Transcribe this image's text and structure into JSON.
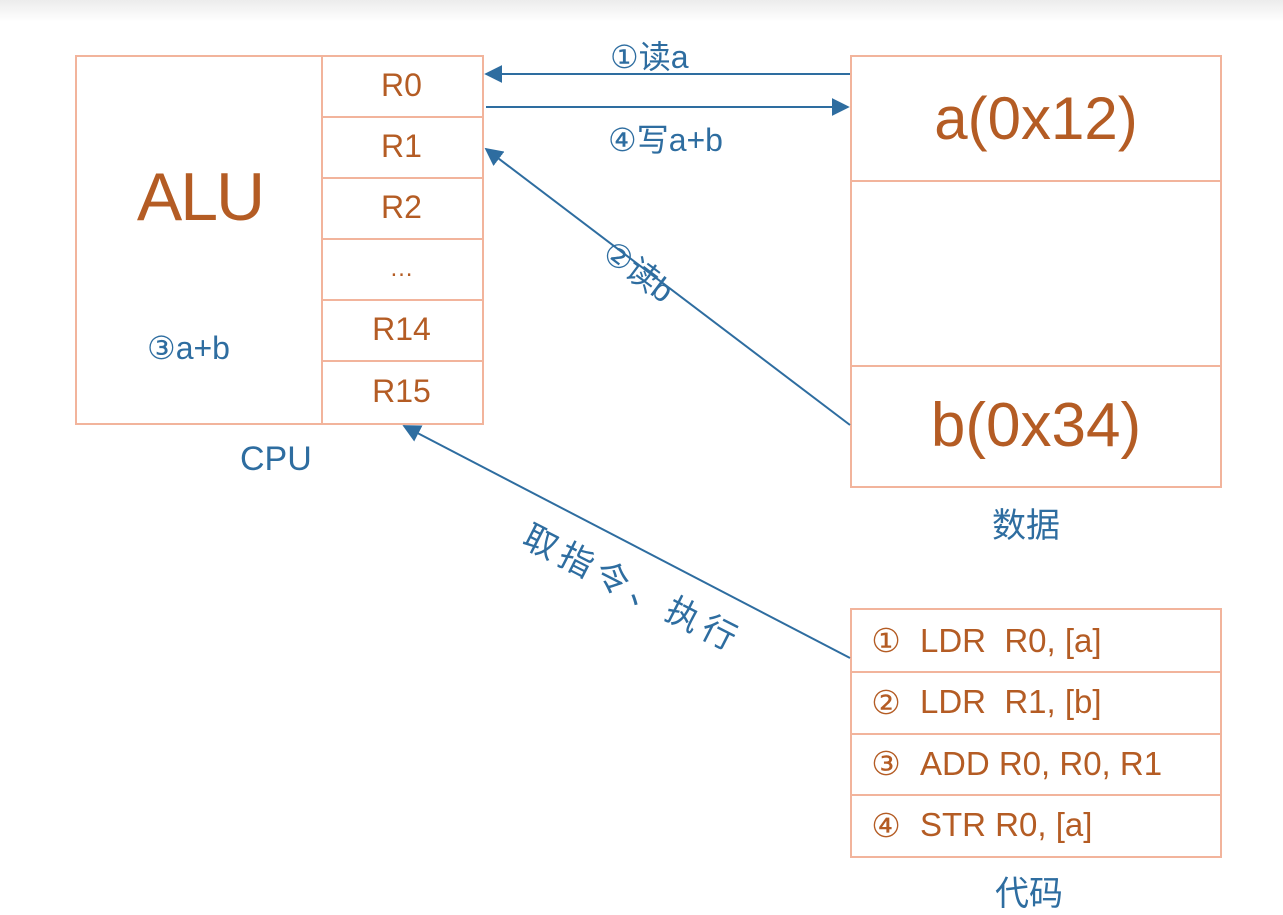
{
  "cpu": {
    "label": "CPU",
    "alu_label": "ALU",
    "alu_step": "③a+b",
    "registers": [
      "R0",
      "R1",
      "R2",
      "…",
      "R14",
      "R15"
    ]
  },
  "data_memory": {
    "label": "数据",
    "cells": [
      "a(0x12)",
      "",
      "b(0x34)"
    ]
  },
  "code_memory": {
    "label": "代码",
    "instructions": [
      {
        "num": "①",
        "text": "LDR  R0, [a]"
      },
      {
        "num": "②",
        "text": "LDR  R1, [b]"
      },
      {
        "num": "③",
        "text": "ADD R0, R0, R1"
      },
      {
        "num": "④",
        "text": "STR R0, [a]"
      }
    ]
  },
  "arrows": {
    "read_a": "①读a",
    "write_ab": "④写a+b",
    "read_b": "②读b",
    "fetch_exec": "取指令、执行"
  },
  "colors": {
    "border": "#f2b49c",
    "brown_text": "#b45c24",
    "blue_text": "#2e6da0",
    "arrow": "#2e6da0"
  }
}
